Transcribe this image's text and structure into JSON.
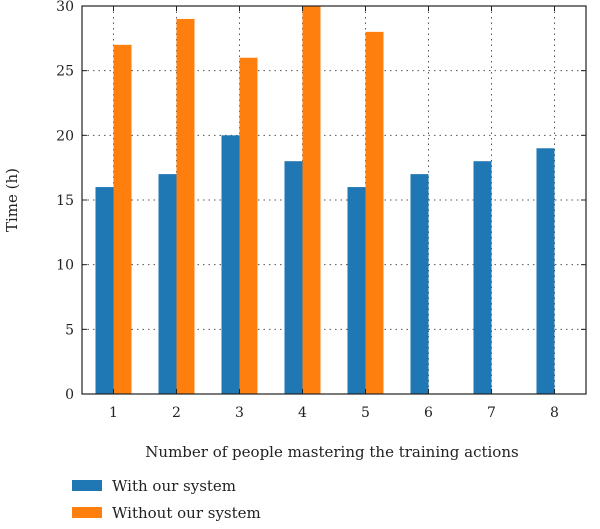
{
  "chart_data": {
    "type": "bar",
    "title": "",
    "xlabel": "Number of people mastering the training actions",
    "ylabel": "Time (h)",
    "categories": [
      "1",
      "2",
      "3",
      "4",
      "5",
      "6",
      "7",
      "8"
    ],
    "ylim": [
      0,
      30
    ],
    "yticks": [
      0,
      5,
      10,
      15,
      20,
      25,
      30
    ],
    "grid": true,
    "legend_position": "bottom-left",
    "series": [
      {
        "name": "With our system",
        "color": "#1f77b4",
        "values": [
          16,
          17,
          20,
          18,
          16,
          17,
          18,
          19
        ]
      },
      {
        "name": "Without our system",
        "color": "#ff7f0e",
        "values": [
          27,
          29,
          26,
          30,
          28,
          null,
          null,
          null
        ]
      }
    ]
  }
}
